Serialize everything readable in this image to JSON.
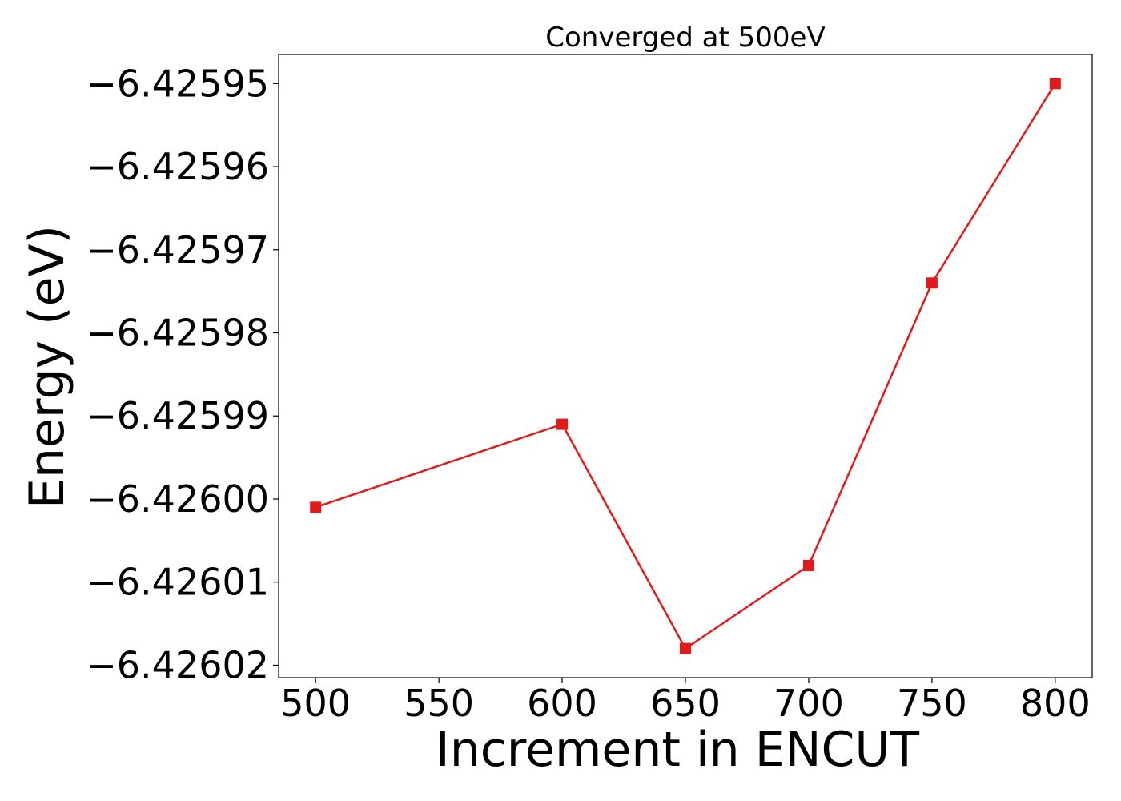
{
  "chart_data": {
    "type": "line",
    "title": "Converged at 500eV",
    "xlabel": "Increment in ENCUT",
    "ylabel": "Energy (eV)",
    "x": [
      500,
      600,
      650,
      700,
      750,
      800
    ],
    "y": [
      -6.426001,
      -6.425991,
      -6.426018,
      -6.426008,
      -6.425974,
      -6.42595
    ],
    "xticks": [
      500,
      550,
      600,
      650,
      700,
      750,
      800
    ],
    "xtick_labels": [
      "500",
      "550",
      "600",
      "650",
      "700",
      "750",
      "800"
    ],
    "yticks": [
      -6.42595,
      -6.42596,
      -6.42597,
      -6.42598,
      -6.42599,
      -6.426,
      -6.42601,
      -6.42602
    ],
    "ytick_labels": [
      "−6.42595",
      "−6.42596",
      "−6.42597",
      "−6.42598",
      "−6.42599",
      "−6.42600",
      "−6.42601",
      "−6.42602"
    ],
    "xlim": [
      485,
      815
    ],
    "ylim": [
      -6.4260215,
      -6.4259465
    ],
    "grid": false,
    "marker": "square",
    "color": "#e31a1c"
  }
}
